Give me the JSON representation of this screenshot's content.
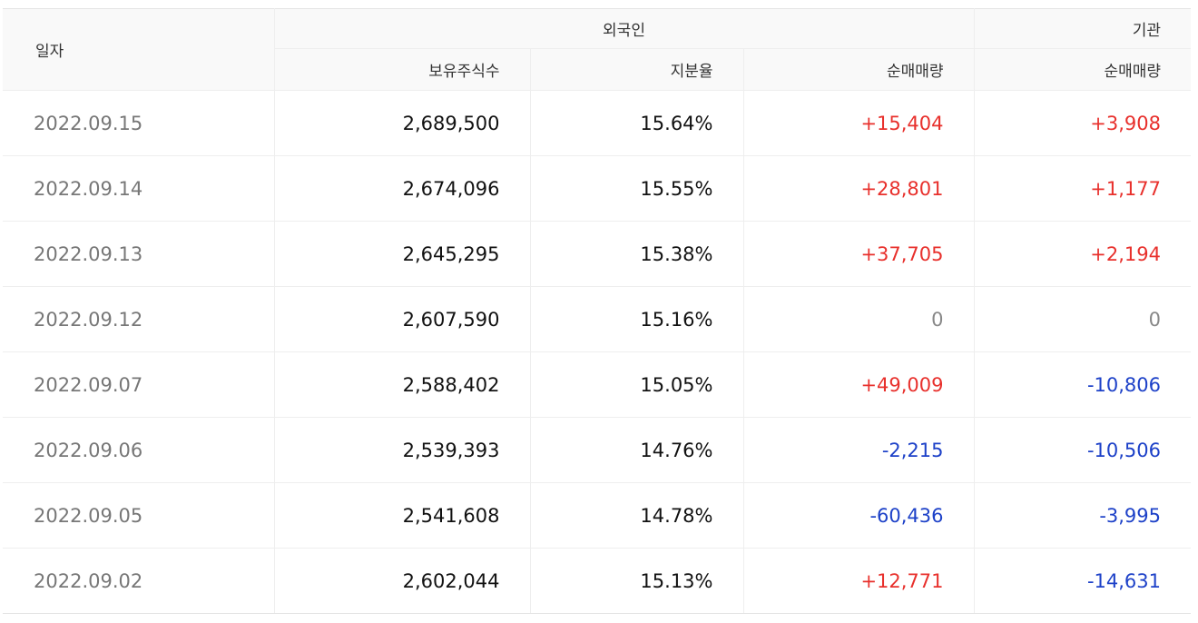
{
  "header": {
    "date_label": "일자",
    "foreign_group_label": "외국인",
    "institution_group_label": "기관",
    "holdings_label": "보유주식수",
    "ratio_label": "지분율",
    "foreign_net_label": "순매매량",
    "institution_net_label": "순매매량"
  },
  "colors": {
    "positive": "#e8302c",
    "negative": "#1d41c8",
    "zero": "#888888",
    "date_text": "#777777"
  },
  "rows": [
    {
      "date": "2022.09.15",
      "holdings": "2,689,500",
      "ratio": "15.64%",
      "foreign_net": "+15,404",
      "institution_net": "+3,908"
    },
    {
      "date": "2022.09.14",
      "holdings": "2,674,096",
      "ratio": "15.55%",
      "foreign_net": "+28,801",
      "institution_net": "+1,177"
    },
    {
      "date": "2022.09.13",
      "holdings": "2,645,295",
      "ratio": "15.38%",
      "foreign_net": "+37,705",
      "institution_net": "+2,194"
    },
    {
      "date": "2022.09.12",
      "holdings": "2,607,590",
      "ratio": "15.16%",
      "foreign_net": "0",
      "institution_net": "0"
    },
    {
      "date": "2022.09.07",
      "holdings": "2,588,402",
      "ratio": "15.05%",
      "foreign_net": "+49,009",
      "institution_net": "-10,806"
    },
    {
      "date": "2022.09.06",
      "holdings": "2,539,393",
      "ratio": "14.76%",
      "foreign_net": "-2,215",
      "institution_net": "-10,506"
    },
    {
      "date": "2022.09.05",
      "holdings": "2,541,608",
      "ratio": "14.78%",
      "foreign_net": "-60,436",
      "institution_net": "-3,995"
    },
    {
      "date": "2022.09.02",
      "holdings": "2,602,044",
      "ratio": "15.13%",
      "foreign_net": "+12,771",
      "institution_net": "-14,631"
    }
  ]
}
